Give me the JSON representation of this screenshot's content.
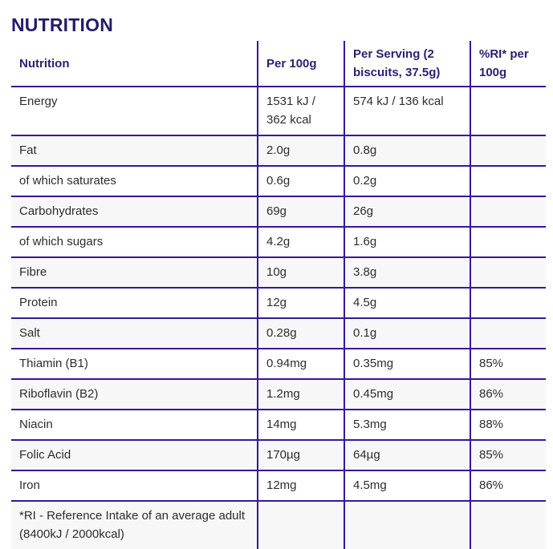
{
  "page_title": "NUTRITION",
  "colors": {
    "heading": "#241b6b",
    "header_text": "#2b2171",
    "body_text": "#2d2d2d",
    "border": "#3a169a",
    "row_alt_bg": "#f7f7f7"
  },
  "table": {
    "columns": [
      {
        "label": "Nutrition"
      },
      {
        "label": "Per 100g"
      },
      {
        "label": "Per Serving (2 biscuits, 37.5g)"
      },
      {
        "label": "%RI* per 100g"
      }
    ],
    "rows": [
      {
        "nutrient": "Energy",
        "per_100g": "1531 kJ / 362 kcal",
        "per_serving": "574 kJ / 136 kcal",
        "ri": ""
      },
      {
        "nutrient": "Fat",
        "per_100g": "2.0g",
        "per_serving": "0.8g",
        "ri": ""
      },
      {
        "nutrient": "of which saturates",
        "per_100g": "0.6g",
        "per_serving": "0.2g",
        "ri": ""
      },
      {
        "nutrient": "Carbohydrates",
        "per_100g": "69g",
        "per_serving": "26g",
        "ri": ""
      },
      {
        "nutrient": "of which sugars",
        "per_100g": "4.2g",
        "per_serving": "1.6g",
        "ri": ""
      },
      {
        "nutrient": "Fibre",
        "per_100g": "10g",
        "per_serving": "3.8g",
        "ri": ""
      },
      {
        "nutrient": "Protein",
        "per_100g": "12g",
        "per_serving": "4.5g",
        "ri": ""
      },
      {
        "nutrient": "Salt",
        "per_100g": "0.28g",
        "per_serving": "0.1g",
        "ri": ""
      },
      {
        "nutrient": "Thiamin (B1)",
        "per_100g": "0.94mg",
        "per_serving": "0.35mg",
        "ri": "85%"
      },
      {
        "nutrient": "Riboflavin (B2)",
        "per_100g": "1.2mg",
        "per_serving": "0.45mg",
        "ri": "86%"
      },
      {
        "nutrient": "Niacin",
        "per_100g": "14mg",
        "per_serving": "5.3mg",
        "ri": "88%"
      },
      {
        "nutrient": "Folic Acid",
        "per_100g": "170µg",
        "per_serving": "64µg",
        "ri": "85%"
      },
      {
        "nutrient": "Iron",
        "per_100g": "12mg",
        "per_serving": "4.5mg",
        "ri": "86%"
      }
    ],
    "footnote": "*RI - Reference Intake of an average adult (8400kJ / 2000kcal)"
  }
}
